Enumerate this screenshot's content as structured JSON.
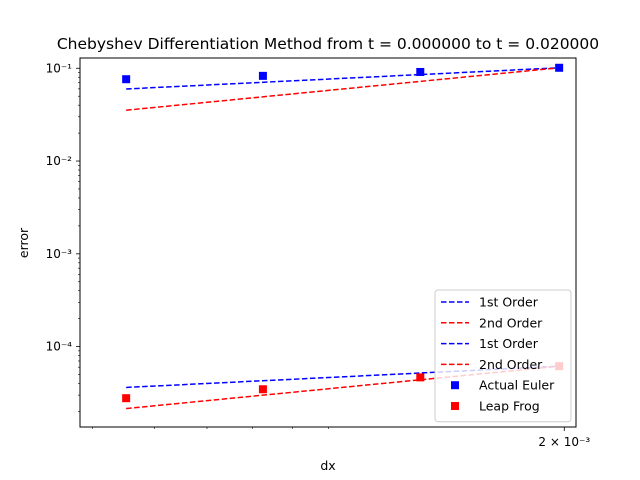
{
  "chart_data": {
    "type": "scatter",
    "title": "Chebyshev Differentiation Method from t = 0.000000 to t = 0.020000",
    "xlabel": "dx",
    "ylabel": "error",
    "xscale": "log",
    "yscale": "log",
    "grid": false,
    "legend_position": "lower-right",
    "xlim": [
      0.000482,
      0.00207
    ],
    "ylim": [
      1.36e-05,
      0.129
    ],
    "x_ticks": [
      {
        "value": 0.002,
        "label": "2 × 10⁻³"
      }
    ],
    "y_ticks": [
      {
        "value": 0.1,
        "label": "10⁻¹"
      },
      {
        "value": 0.01,
        "label": "10⁻²"
      },
      {
        "value": 0.001,
        "label": "10⁻³"
      },
      {
        "value": 0.0001,
        "label": "10⁻⁴"
      }
    ],
    "series": [
      {
        "name": "1st Order",
        "kind": "line",
        "style": "dashed",
        "color": "#0000ff",
        "points": [
          [
            0.000552,
            0.0598
          ],
          [
            0.00197,
            0.1012
          ]
        ]
      },
      {
        "name": "2nd Order",
        "kind": "line",
        "style": "dashed",
        "color": "#ff0000",
        "points": [
          [
            0.000552,
            0.0353
          ],
          [
            0.00197,
            0.1012
          ]
        ]
      },
      {
        "name": "1st Order",
        "kind": "line",
        "style": "dashed",
        "color": "#0000ff",
        "points": [
          [
            0.000552,
            3.63e-05
          ],
          [
            0.00197,
            6.15e-05
          ]
        ]
      },
      {
        "name": "2nd Order",
        "kind": "line",
        "style": "dashed",
        "color": "#ff0000",
        "points": [
          [
            0.000552,
            2.15e-05
          ],
          [
            0.00197,
            6.15e-05
          ]
        ]
      },
      {
        "name": "Actual Euler",
        "kind": "markers",
        "marker": "square",
        "color": "#0000ff",
        "points": [
          [
            0.000552,
            0.0762
          ],
          [
            0.000825,
            0.0828
          ],
          [
            0.00131,
            0.0912
          ],
          [
            0.00197,
            0.1012
          ]
        ]
      },
      {
        "name": "Leap Frog",
        "kind": "markers",
        "marker": "square",
        "color": "#ff0000",
        "points": [
          [
            0.000552,
            2.78e-05
          ],
          [
            0.000825,
            3.47e-05
          ],
          [
            0.00131,
            4.66e-05
          ],
          [
            0.00197,
            6.15e-05
          ]
        ]
      }
    ]
  }
}
